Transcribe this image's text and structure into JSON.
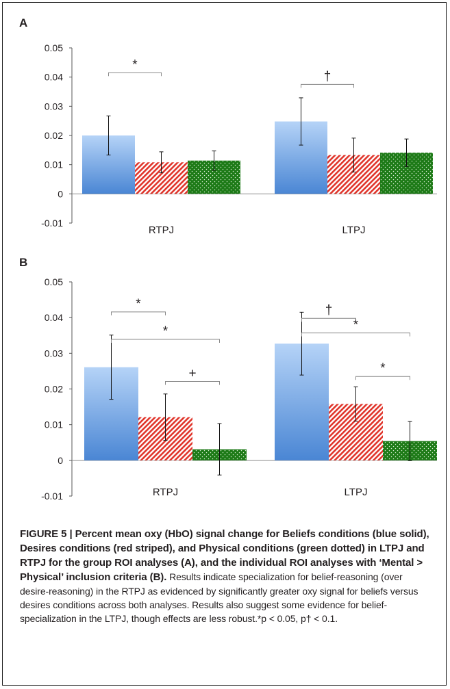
{
  "figure": {
    "panels": [
      "A",
      "B"
    ],
    "caption_title": "FIGURE 5 | Percent mean oxy (HbO) signal change for Beliefs conditions (blue solid), Desires conditions (red striped), and Physical conditions (green dotted) in LTPJ and RTPJ for the group ROI analyses (A), and the individual ROI analyses with ‘Mental > Physical’ inclusion criteria (B).",
    "caption_body": " Results indicate specialization for belief-reasoning (over desire-reasoning) in the RTPJ as evidenced by significantly greater oxy signal for beliefs versus desires conditions across both analyses. Results also suggest some evidence for belief-specialization in the LTPJ, though effects are less robust.*p < 0.05, p† < 0.1."
  },
  "colors": {
    "beliefs_light": "#b5d3f7",
    "beliefs_dark": "#4a86d4",
    "desires": "#e0342a",
    "physical": "#1d7a17"
  },
  "chart_data": [
    {
      "panel": "A",
      "type": "bar",
      "categories": [
        "RTPJ",
        "LTPJ"
      ],
      "series": [
        {
          "values": [
            0.02,
            0.0248
          ],
          "errors": [
            0.0067,
            0.0081
          ]
        },
        {
          "values": [
            0.0108,
            0.0133
          ],
          "errors": [
            0.0036,
            0.0058
          ]
        },
        {
          "values": [
            0.0114,
            0.0141
          ],
          "errors": [
            0.0033,
            0.0047
          ]
        }
      ],
      "ylim": [
        -0.01,
        0.05
      ],
      "yticks": [
        "0.05",
        "0.04",
        "0.03",
        "0.02",
        "0.01",
        "0",
        "-0.01"
      ],
      "ytick_values": [
        0.05,
        0.04,
        0.03,
        0.02,
        0.01,
        0,
        -0.01
      ],
      "brackets": [
        {
          "group": 0,
          "from": 0,
          "to": 1,
          "level": 0.0415,
          "label": "*"
        },
        {
          "group": 1,
          "from": 0,
          "to": 1,
          "level": 0.0375,
          "label": "†"
        }
      ]
    },
    {
      "panel": "B",
      "type": "bar",
      "categories": [
        "RTPJ",
        "LTPJ"
      ],
      "series": [
        {
          "values": [
            0.0261,
            0.0327
          ],
          "errors": [
            0.009,
            0.0088
          ]
        },
        {
          "values": [
            0.0121,
            0.0158
          ],
          "errors": [
            0.0065,
            0.0048
          ]
        },
        {
          "values": [
            0.0031,
            0.0054
          ],
          "errors": [
            0.0072,
            0.0055
          ]
        }
      ],
      "ylim": [
        -0.01,
        0.05
      ],
      "yticks": [
        "0.05",
        "0.04",
        "0.03",
        "0.02",
        "0.01",
        "0",
        "-0.01"
      ],
      "ytick_values": [
        0.05,
        0.04,
        0.03,
        0.02,
        0.01,
        0,
        -0.01
      ],
      "brackets": [
        {
          "group": 0,
          "from": 0,
          "to": 1,
          "level": 0.0416,
          "label": "*"
        },
        {
          "group": 0,
          "from": 0,
          "to": 2,
          "level": 0.0339,
          "label": "*"
        },
        {
          "group": 0,
          "from": 1,
          "to": 2,
          "level": 0.0221,
          "label": "+"
        },
        {
          "group": 1,
          "from": 0,
          "to": 1,
          "level": 0.0398,
          "label": "†"
        },
        {
          "group": 1,
          "from": 0,
          "to": 2,
          "level": 0.0357,
          "label": "*"
        },
        {
          "group": 1,
          "from": 1,
          "to": 2,
          "level": 0.0235,
          "label": "*"
        }
      ]
    }
  ]
}
